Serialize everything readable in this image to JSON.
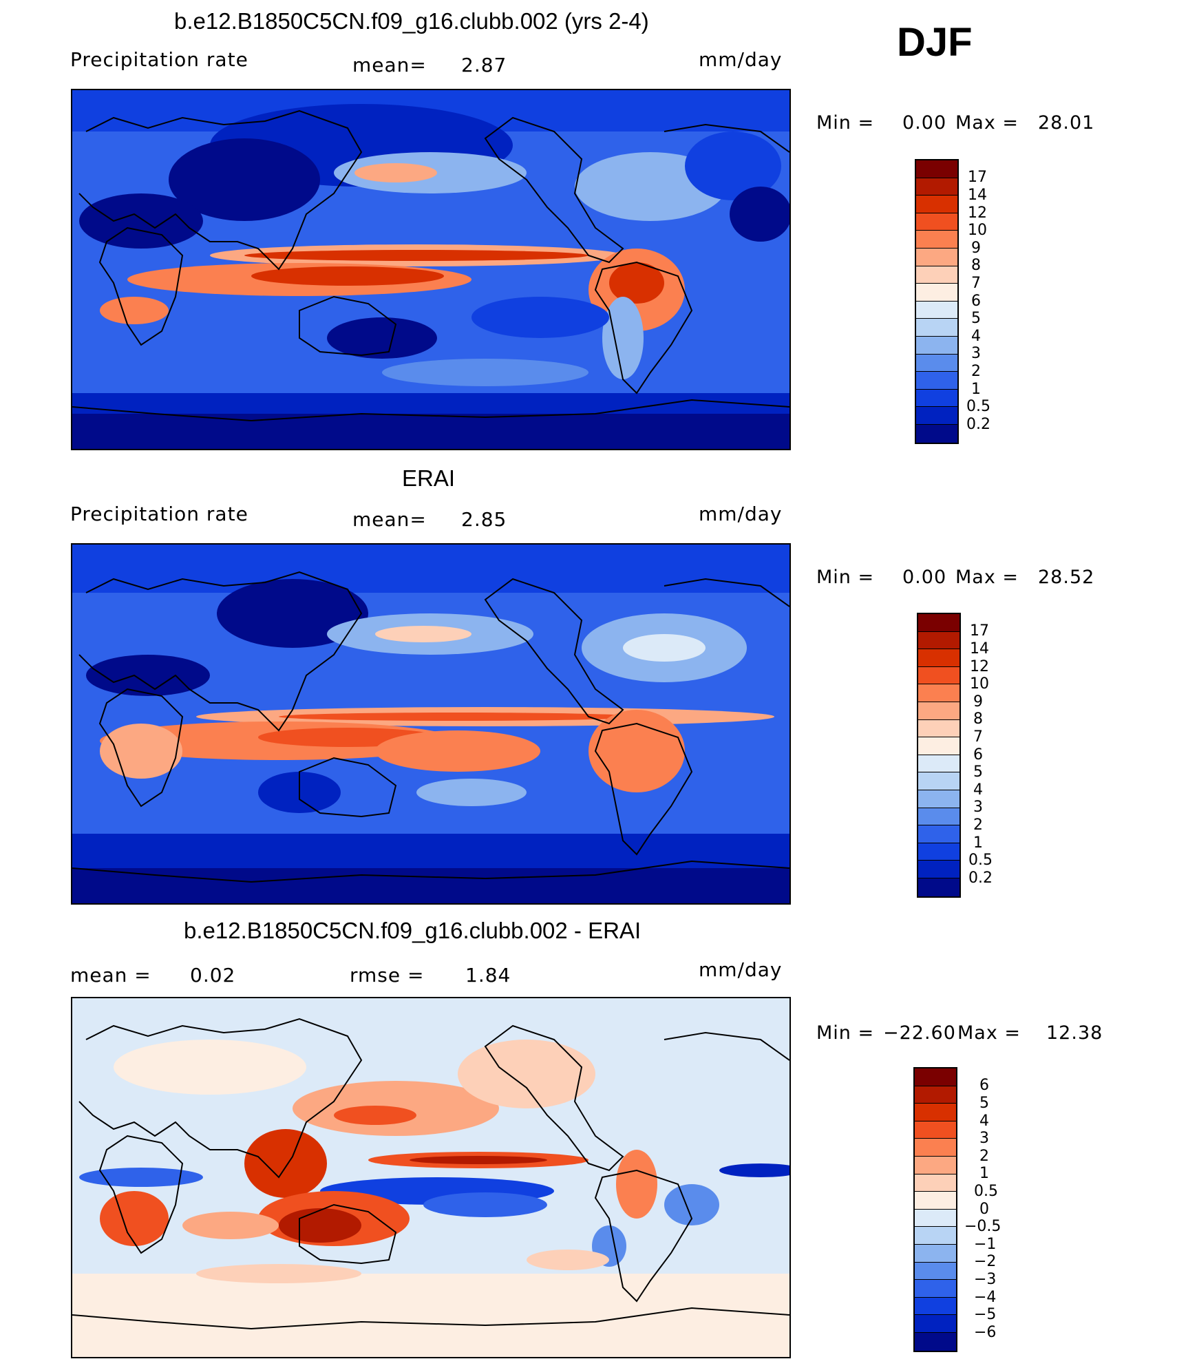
{
  "season": "DJF",
  "colors": {
    "seq": [
      "#7a0000",
      "#b21a00",
      "#d83000",
      "#f05020",
      "#fb8050",
      "#fca882",
      "#fdd0b8",
      "#fdeee2",
      "#dceaf8",
      "#b8d4f4",
      "#8cb4ef",
      "#5a8cec",
      "#2f62ea",
      "#1040e0",
      "#0022c0",
      "#000a8a"
    ],
    "div": [
      "#7a0000",
      "#b21a00",
      "#d83000",
      "#f05020",
      "#fb8050",
      "#fca882",
      "#fdd0b8",
      "#fdeee2",
      "#dceaf8",
      "#b8d4f4",
      "#8cb4ef",
      "#5a8cec",
      "#2f62ea",
      "#1040e0",
      "#0022c0",
      "#000a8a"
    ]
  },
  "panels": [
    {
      "title": "b.e12.B1850C5CN.f09_g16.clubb.002 (yrs 2-4)",
      "left_label": "Precipitation  rate",
      "mid_label": "mean=",
      "mid_value": "2.87",
      "right_label": "",
      "right_value": "",
      "units": "mm/day",
      "min_text": "Min  =",
      "min_value": "0.00",
      "max_text": "Max  =",
      "max_value": "28.01",
      "colorbar_labels": [
        "17",
        "14",
        "12",
        "10",
        "9",
        "8",
        "7",
        "6",
        "5",
        "4",
        "3",
        "2",
        "1",
        "0.5",
        "0.2"
      ]
    },
    {
      "title": "ERAI",
      "left_label": "Precipitation  rate",
      "mid_label": "mean=",
      "mid_value": "2.85",
      "right_label": "",
      "right_value": "",
      "units": "mm/day",
      "min_text": "Min  =",
      "min_value": "0.00",
      "max_text": "Max  =",
      "max_value": "28.52",
      "colorbar_labels": [
        "17",
        "14",
        "12",
        "10",
        "9",
        "8",
        "7",
        "6",
        "5",
        "4",
        "3",
        "2",
        "1",
        "0.5",
        "0.2"
      ]
    },
    {
      "title": "b.e12.B1850C5CN.f09_g16.clubb.002 - ERAI",
      "left_label": "mean  =",
      "mid_label": "rmse  =",
      "mid_value": "1.84",
      "right_label": "",
      "right_value": "0.02",
      "units": "mm/day",
      "min_text": "Min  =",
      "min_value": "−22.60",
      "max_text": "Max  =",
      "max_value": "12.38",
      "colorbar_labels": [
        "6",
        "5",
        "4",
        "3",
        "2",
        "1",
        "0.5",
        "0",
        "−0.5",
        "−1",
        "−2",
        "−3",
        "−4",
        "−5",
        "−6"
      ]
    }
  ]
}
